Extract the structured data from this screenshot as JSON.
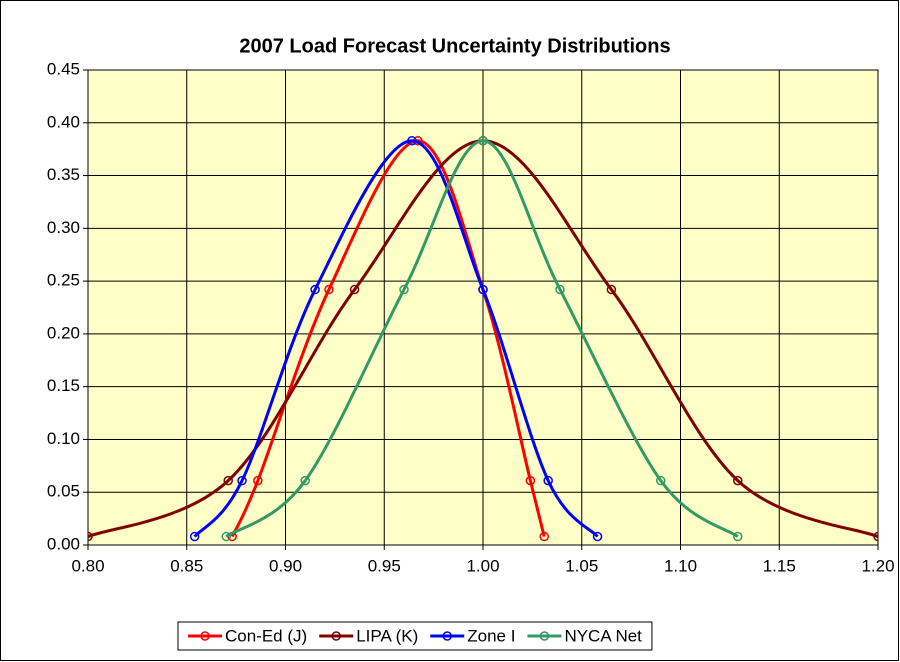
{
  "chart_data": {
    "type": "scatter",
    "title": "2007 Load Forecast Uncertainty Distributions",
    "series": [
      {
        "name": "Con-Ed (J)",
        "color": "#ff0000",
        "x": [
          0.873,
          0.886,
          0.922,
          0.967,
          1.0,
          1.024,
          1.031
        ],
        "values": [
          0.008,
          0.061,
          0.242,
          0.383,
          0.242,
          0.061,
          0.008
        ]
      },
      {
        "name": "LIPA (K)",
        "color": "#800000",
        "x": [
          0.8,
          0.871,
          0.935,
          1.0,
          1.065,
          1.129,
          1.2
        ],
        "values": [
          0.008,
          0.061,
          0.242,
          0.383,
          0.242,
          0.061,
          0.008
        ]
      },
      {
        "name": "Zone I",
        "color": "#0000ff",
        "x": [
          0.854,
          0.878,
          0.915,
          0.964,
          1.0,
          1.033,
          1.058
        ],
        "values": [
          0.008,
          0.061,
          0.242,
          0.383,
          0.242,
          0.061,
          0.008
        ]
      },
      {
        "name": "NYCA Net",
        "color": "#339966",
        "x": [
          0.87,
          0.91,
          0.96,
          1.0,
          1.039,
          1.09,
          1.129
        ],
        "values": [
          0.008,
          0.061,
          0.242,
          0.383,
          0.242,
          0.061,
          0.008
        ]
      }
    ],
    "xlim": [
      0.8,
      1.2
    ],
    "xticks": [
      {
        "value": 0.8,
        "label": "0.80"
      },
      {
        "value": 0.85,
        "label": "0.85"
      },
      {
        "value": 0.9,
        "label": "0.90"
      },
      {
        "value": 0.95,
        "label": "0.95"
      },
      {
        "value": 1.0,
        "label": "1.00"
      },
      {
        "value": 1.05,
        "label": "1.05"
      },
      {
        "value": 1.1,
        "label": "1.10"
      },
      {
        "value": 1.15,
        "label": "1.15"
      },
      {
        "value": 1.2,
        "label": "1.20"
      }
    ],
    "ylim": [
      0,
      0.45
    ],
    "yticks": [
      {
        "value": 0,
        "label": "0.00"
      },
      {
        "value": 0.05,
        "label": "0.05"
      },
      {
        "value": 0.1,
        "label": "0.10"
      },
      {
        "value": 0.15,
        "label": "0.15"
      },
      {
        "value": 0.2,
        "label": "0.20"
      },
      {
        "value": 0.25,
        "label": "0.25"
      },
      {
        "value": 0.3,
        "label": "0.30"
      },
      {
        "value": 0.35,
        "label": "0.35"
      },
      {
        "value": 0.4,
        "label": "0.40"
      },
      {
        "value": 0.45,
        "label": "0.45"
      }
    ],
    "grid": true,
    "legend": "bottom",
    "background": "#ffffc8"
  }
}
